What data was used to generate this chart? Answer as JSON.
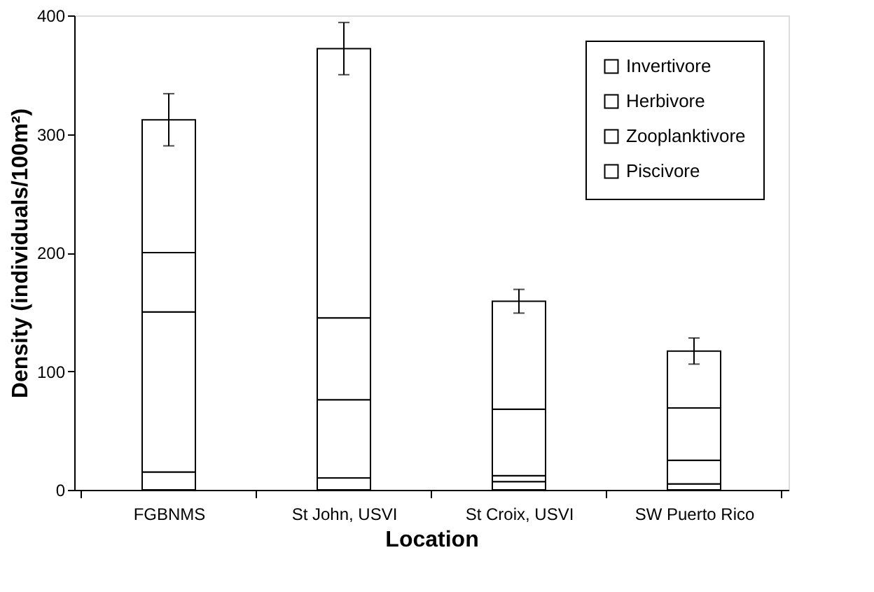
{
  "chart_data": {
    "type": "bar",
    "stacked": true,
    "xlabel": "Location",
    "ylabel": "Density (individuals/100m²)",
    "categories": [
      "FGBNMS",
      "St John, USVI",
      "St Croix, USVI",
      "SW Puerto Rico"
    ],
    "series": [
      {
        "name": "Piscivore",
        "color": "#ffffff",
        "values": [
          15,
          10,
          7,
          5
        ]
      },
      {
        "name": "Zooplanktivore",
        "color": "#ffffff",
        "values": [
          135,
          66,
          5,
          20
        ]
      },
      {
        "name": "Herbivore",
        "color": "#ffffff",
        "values": [
          50,
          69,
          56,
          44
        ]
      },
      {
        "name": "Invertivore",
        "color": "#ffffff",
        "values": [
          112,
          227,
          91,
          48
        ],
        "errors": [
          22,
          22,
          10,
          11
        ]
      }
    ],
    "ylim": [
      0,
      400
    ],
    "yticks": [
      0,
      100,
      200,
      300,
      400
    ],
    "grid": false,
    "legend": "top right"
  }
}
